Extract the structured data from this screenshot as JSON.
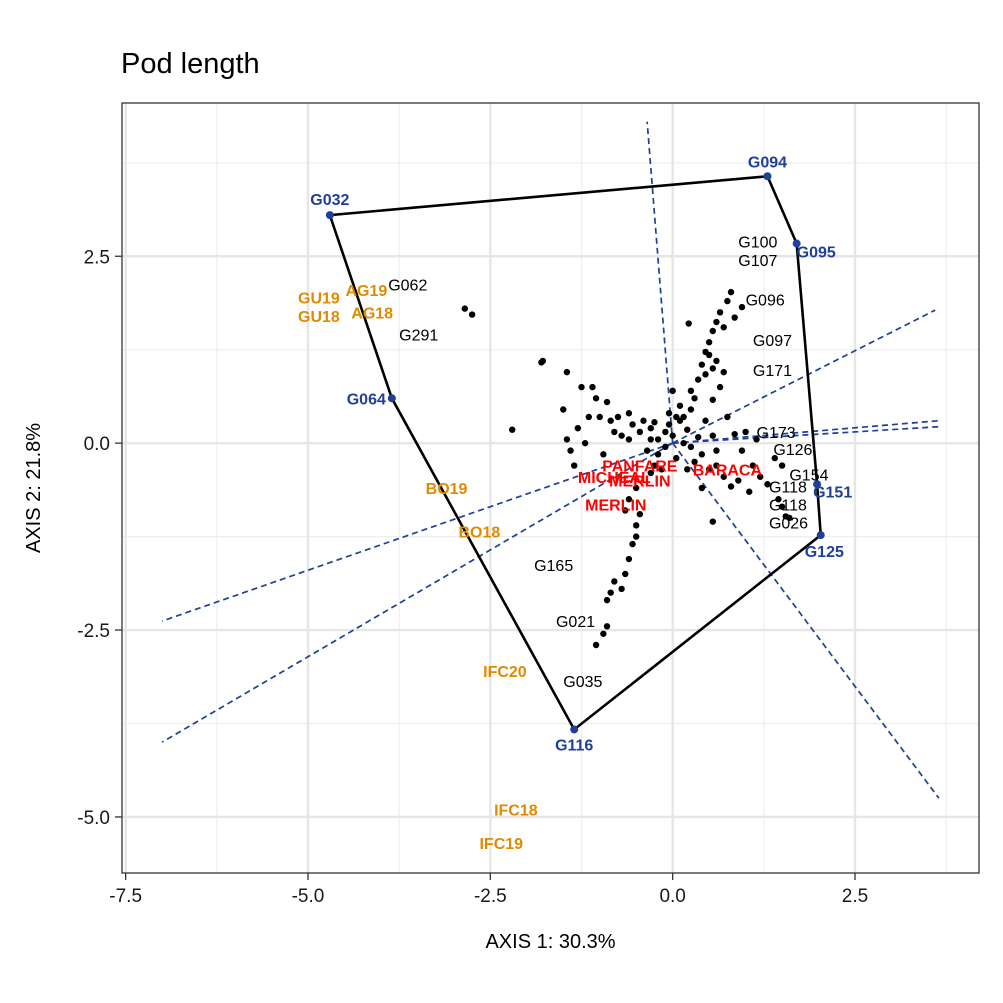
{
  "chart_data": {
    "type": "scatter",
    "title": "Pod length",
    "xlabel": "AXIS 1: 30.3%",
    "ylabel": "AXIS 2: 21.8%",
    "xlim": [
      -7.55,
      4.2
    ],
    "ylim": [
      -5.75,
      4.55
    ],
    "xticks": [
      -7.5,
      -5.0,
      -2.5,
      0.0,
      2.5
    ],
    "xtick_labels": [
      "-7.5",
      "-5.0",
      "-2.5",
      "0.0",
      "2.5"
    ],
    "yticks": [
      -5.0,
      -2.5,
      0.0,
      2.5
    ],
    "ytick_labels": [
      "-5.0",
      "-2.5",
      "0.0",
      "2.5"
    ],
    "grid": true,
    "colors": {
      "hull": "#000000",
      "vertex": "#1f3f99",
      "rays": "#1f3f99",
      "environment": "#e08a00",
      "check": "#ff0000",
      "genotype": "#000000"
    },
    "hull_vertices": [
      {
        "name": "G032",
        "x": -4.7,
        "y": 3.05
      },
      {
        "name": "G094",
        "x": 1.3,
        "y": 3.57
      },
      {
        "name": "G095",
        "x": 1.7,
        "y": 2.67
      },
      {
        "name": "G151",
        "x": 1.98,
        "y": -0.55
      },
      {
        "name": "G125",
        "x": 2.03,
        "y": -1.23
      },
      {
        "name": "G116",
        "x": -1.35,
        "y": -3.83
      },
      {
        "name": "G064",
        "x": -3.85,
        "y": 0.6
      }
    ],
    "rays": [
      {
        "x1": 0,
        "y1": 0,
        "x2": -0.35,
        "y2": 4.3
      },
      {
        "x1": 0,
        "y1": 0,
        "x2": 3.6,
        "y2": 1.78
      },
      {
        "x1": 0,
        "y1": 0,
        "x2": 3.65,
        "y2": 0.3
      },
      {
        "x1": 0,
        "y1": 0,
        "x2": 3.65,
        "y2": 0.22
      },
      {
        "x1": 0,
        "y1": 0,
        "x2": 3.65,
        "y2": -4.75
      },
      {
        "x1": 0,
        "y1": 0,
        "x2": -7.0,
        "y2": -4.0
      },
      {
        "x1": 0,
        "y1": 0,
        "x2": -7.0,
        "y2": -2.38
      }
    ],
    "environments": [
      {
        "name": "GU19",
        "x": -4.85,
        "y": 1.95
      },
      {
        "name": "GU18",
        "x": -4.85,
        "y": 1.7
      },
      {
        "name": "AG19",
        "x": -4.2,
        "y": 2.05
      },
      {
        "name": "AG18",
        "x": -4.12,
        "y": 1.75
      },
      {
        "name": "BO19",
        "x": -3.1,
        "y": -0.6
      },
      {
        "name": "BO18",
        "x": -2.65,
        "y": -1.18
      },
      {
        "name": "IFC20",
        "x": -2.3,
        "y": -3.05
      },
      {
        "name": "IFC18",
        "x": -2.15,
        "y": -4.9
      },
      {
        "name": "IFC19",
        "x": -2.35,
        "y": -5.35
      }
    ],
    "checks": [
      {
        "name": "PANFARE",
        "x": -0.45,
        "y": -0.3
      },
      {
        "name": "BARACA",
        "x": 0.75,
        "y": -0.35
      },
      {
        "name": "MICHEAL",
        "x": -0.8,
        "y": -0.45
      },
      {
        "name": "MERLIN",
        "x": -0.78,
        "y": -0.82
      },
      {
        "name": "MERLIN",
        "x": -0.45,
        "y": -0.5
      }
    ],
    "genotype_labels": [
      {
        "name": "G062",
        "x": -3.9,
        "y": 2.12
      },
      {
        "name": "G291",
        "x": -3.75,
        "y": 1.45
      },
      {
        "name": "G100",
        "x": 0.9,
        "y": 2.7
      },
      {
        "name": "G107",
        "x": 0.9,
        "y": 2.45
      },
      {
        "name": "G096",
        "x": 1.0,
        "y": 1.92
      },
      {
        "name": "G097",
        "x": 1.1,
        "y": 1.38
      },
      {
        "name": "G171",
        "x": 1.1,
        "y": 0.98
      },
      {
        "name": "G173",
        "x": 1.15,
        "y": 0.15
      },
      {
        "name": "G126",
        "x": 1.38,
        "y": -0.08
      },
      {
        "name": "G154",
        "x": 1.6,
        "y": -0.42
      },
      {
        "name": "G118",
        "x": 1.32,
        "y": -0.58
      },
      {
        "name": "G118",
        "x": 1.32,
        "y": -0.82
      },
      {
        "name": "G026",
        "x": 1.32,
        "y": -1.06
      },
      {
        "name": "G165",
        "x": -1.9,
        "y": -1.63
      },
      {
        "name": "G021",
        "x": -1.6,
        "y": -2.38
      },
      {
        "name": "G035",
        "x": -1.5,
        "y": -3.18
      }
    ],
    "points": [
      [
        -2.2,
        0.18
      ],
      [
        -1.8,
        1.08
      ],
      [
        -1.78,
        1.1
      ],
      [
        -1.45,
        0.95
      ],
      [
        -1.25,
        0.75
      ],
      [
        -1.1,
        0.75
      ],
      [
        -1.05,
        0.6
      ],
      [
        -0.9,
        0.55
      ],
      [
        -1.5,
        0.45
      ],
      [
        -1.45,
        0.05
      ],
      [
        -1.3,
        0.2
      ],
      [
        -1.15,
        0.35
      ],
      [
        -1.0,
        0.35
      ],
      [
        -0.85,
        0.3
      ],
      [
        -0.7,
        0.1
      ],
      [
        -0.6,
        0.05
      ],
      [
        -0.55,
        0.25
      ],
      [
        -0.45,
        0.15
      ],
      [
        -0.3,
        0.2
      ],
      [
        -0.2,
        0.05
      ],
      [
        -0.1,
        0.15
      ],
      [
        0.0,
        0.1
      ],
      [
        0.1,
        0.3
      ],
      [
        0.15,
        0.0
      ],
      [
        0.2,
        0.18
      ],
      [
        0.25,
        -0.05
      ],
      [
        0.35,
        0.08
      ],
      [
        0.45,
        0.3
      ],
      [
        0.55,
        0.1
      ],
      [
        0.6,
        -0.1
      ],
      [
        -0.1,
        -0.05
      ],
      [
        -0.2,
        -0.15
      ],
      [
        -0.35,
        -0.1
      ],
      [
        0.05,
        -0.2
      ],
      [
        0.3,
        -0.25
      ],
      [
        0.1,
        0.5
      ],
      [
        0.0,
        0.7
      ],
      [
        0.15,
        0.35
      ],
      [
        -0.05,
        0.4
      ],
      [
        0.25,
        0.45
      ],
      [
        0.3,
        0.6
      ],
      [
        0.35,
        0.85
      ],
      [
        0.4,
        1.05
      ],
      [
        0.45,
        1.22
      ],
      [
        0.5,
        1.35
      ],
      [
        0.55,
        1.5
      ],
      [
        0.6,
        1.62
      ],
      [
        0.65,
        1.75
      ],
      [
        0.7,
        1.55
      ],
      [
        0.75,
        1.9
      ],
      [
        0.8,
        2.02
      ],
      [
        0.85,
        1.68
      ],
      [
        0.95,
        1.82
      ],
      [
        0.5,
        1.18
      ],
      [
        0.55,
        1.0
      ],
      [
        0.45,
        0.92
      ],
      [
        0.6,
        1.1
      ],
      [
        0.7,
        0.95
      ],
      [
        0.65,
        0.75
      ],
      [
        0.55,
        0.58
      ],
      [
        0.22,
        1.6
      ],
      [
        0.25,
        0.7
      ],
      [
        0.75,
        0.35
      ],
      [
        0.85,
        0.12
      ],
      [
        1.0,
        0.15
      ],
      [
        1.15,
        0.05
      ],
      [
        0.95,
        -0.1
      ],
      [
        1.1,
        -0.3
      ],
      [
        1.2,
        -0.45
      ],
      [
        1.3,
        -0.55
      ],
      [
        1.05,
        -0.65
      ],
      [
        0.9,
        -0.5
      ],
      [
        0.8,
        -0.58
      ],
      [
        0.7,
        -0.45
      ],
      [
        0.6,
        -0.3
      ],
      [
        1.4,
        -0.2
      ],
      [
        1.5,
        -0.3
      ],
      [
        1.45,
        -0.75
      ],
      [
        1.5,
        -0.85
      ],
      [
        1.55,
        -0.98
      ],
      [
        1.6,
        -1.0
      ],
      [
        0.55,
        -1.05
      ],
      [
        0.4,
        -0.6
      ],
      [
        -0.3,
        -0.4
      ],
      [
        -0.5,
        -0.6
      ],
      [
        -0.6,
        -0.75
      ],
      [
        -0.65,
        -0.9
      ],
      [
        -0.5,
        -1.1
      ],
      [
        -0.55,
        -1.35
      ],
      [
        -0.6,
        -1.55
      ],
      [
        -0.65,
        -1.75
      ],
      [
        -0.7,
        -1.95
      ],
      [
        -0.8,
        -1.85
      ],
      [
        -0.85,
        -2.0
      ],
      [
        -0.9,
        -2.1
      ],
      [
        -0.9,
        -2.45
      ],
      [
        -0.95,
        -2.55
      ],
      [
        -1.05,
        -2.7
      ],
      [
        -0.5,
        -1.25
      ],
      [
        -0.45,
        -0.95
      ],
      [
        -1.35,
        -0.3
      ],
      [
        -1.4,
        -0.1
      ],
      [
        -1.2,
        0.0
      ],
      [
        -0.95,
        -0.15
      ],
      [
        -0.8,
        0.15
      ],
      [
        -0.75,
        0.35
      ],
      [
        -0.6,
        0.4
      ],
      [
        -0.4,
        0.3
      ],
      [
        -0.05,
        0.25
      ],
      [
        0.05,
        0.35
      ],
      [
        0.2,
        -0.35
      ],
      [
        0.4,
        -0.15
      ],
      [
        0.5,
        -0.35
      ],
      [
        -0.25,
        -0.3
      ],
      [
        -0.15,
        -0.35
      ],
      [
        -0.3,
        0.05
      ],
      [
        -0.25,
        0.28
      ],
      [
        -2.85,
        1.8
      ],
      [
        -2.75,
        1.72
      ]
    ]
  }
}
